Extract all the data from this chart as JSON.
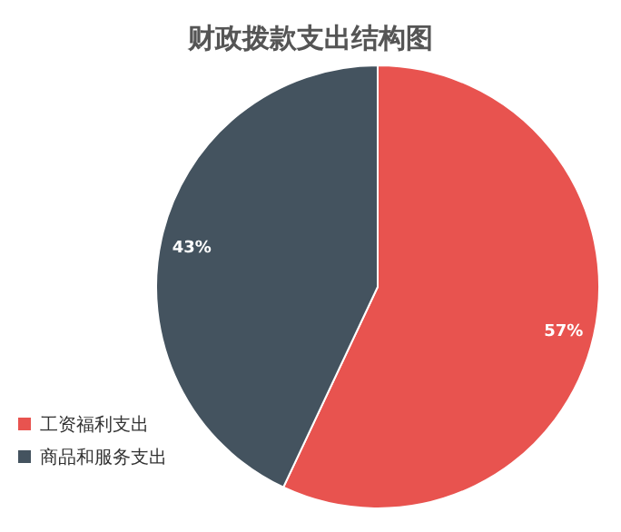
{
  "chart_data": {
    "type": "pie",
    "title": "财政拨款支出结构图",
    "categories": [
      "工资福利支出",
      "商品和服务支出"
    ],
    "values": [
      57,
      43
    ],
    "colors": [
      "#e8534f",
      "#44535f"
    ],
    "value_labels": [
      "57%",
      "43%"
    ],
    "legend": "bottom left"
  }
}
